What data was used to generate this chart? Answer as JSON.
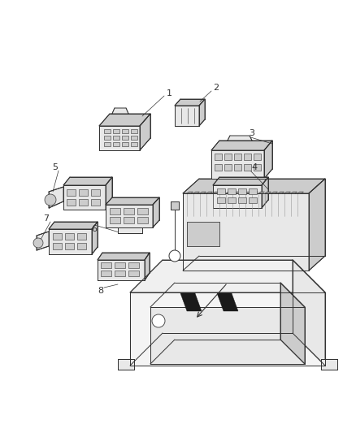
{
  "bg_color": "#ffffff",
  "line_color": "#333333",
  "fig_width": 4.38,
  "fig_height": 5.33,
  "dpi": 100,
  "label_fs": 7.5,
  "lw": 0.7
}
